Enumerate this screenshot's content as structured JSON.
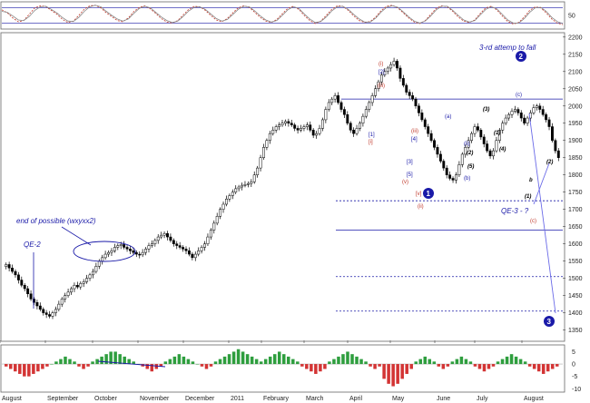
{
  "chart_data": [
    {
      "type": "line",
      "panel": "oscillator",
      "y_ticks": [
        "50"
      ],
      "ylim": [
        0,
        100
      ],
      "reference_levels": [
        20,
        80
      ],
      "series": [
        {
          "name": "",
          "color": "#c0392b",
          "style": "dashed",
          "values": [
            72,
            60,
            40,
            25,
            30,
            55,
            80,
            88,
            85,
            70,
            55,
            35,
            22,
            28,
            50,
            75,
            88,
            90,
            80,
            60,
            45,
            30,
            25,
            40,
            65,
            82,
            88,
            76,
            58,
            38,
            24,
            20,
            30,
            52,
            74,
            86,
            84,
            70,
            50,
            32,
            25,
            38,
            60,
            80,
            88,
            82,
            62,
            42,
            28,
            22,
            34,
            56,
            78,
            86,
            74,
            50,
            30,
            18,
            28,
            50,
            74,
            88,
            86,
            70,
            48,
            30,
            22,
            26,
            44,
            70,
            86,
            90,
            80,
            60,
            40,
            24,
            18,
            30,
            54,
            78,
            88,
            84,
            66,
            44,
            28,
            22,
            32,
            58,
            80,
            86,
            72,
            48,
            26,
            16,
            22,
            44,
            70,
            84,
            80,
            60,
            36,
            20,
            14
          ]
        },
        {
          "name": "",
          "color": "#888888",
          "style": "solid",
          "values": [
            66,
            62,
            48,
            32,
            30,
            46,
            70,
            84,
            86,
            74,
            60,
            42,
            28,
            26,
            42,
            66,
            84,
            90,
            84,
            66,
            50,
            36,
            28,
            36,
            58,
            78,
            86,
            80,
            62,
            44,
            30,
            22,
            28,
            46,
            68,
            82,
            84,
            74,
            56,
            38,
            28,
            34,
            54,
            74,
            86,
            84,
            68,
            48,
            32,
            24,
            30,
            50,
            72,
            84,
            78,
            56,
            36,
            22,
            26,
            44,
            68,
            84,
            86,
            74,
            54,
            36,
            24,
            24,
            40,
            64,
            82,
            88,
            82,
            64,
            44,
            28,
            20,
            28,
            48,
            72,
            86,
            86,
            70,
            50,
            32,
            24,
            30,
            52,
            74,
            84,
            76,
            54,
            32,
            20,
            20,
            38,
            62,
            80,
            82,
            66,
            42,
            26,
            18
          ]
        }
      ]
    },
    {
      "type": "candlestick",
      "panel": "price",
      "annotations": {
        "top_note": "3-rd attemp to fall",
        "left_note": "end of possible (wxyxx2)",
        "qe2": "QE-2",
        "qe3": "QE-3 - ?",
        "waves_circled": [
          "1",
          "2",
          "3"
        ],
        "waves_red": [
          "(i)",
          "(ii)",
          "(iii)",
          "(iv)",
          "(v)",
          "(iii)",
          "[ii]",
          "(c)",
          "(b)",
          "[1]",
          "[i]",
          "(ii)",
          "[v]"
        ],
        "waves_blue": [
          "(a)",
          "(b)",
          "(c)",
          "[1]",
          "[2]",
          "[3]",
          "[4]",
          "[5]",
          "(ii)",
          "(iv)",
          "(a)",
          "(b)",
          "(c)",
          "[1]",
          "[2]"
        ],
        "waves_black": [
          "(1)",
          "(2)",
          "(3)",
          "(4)",
          "(5)",
          "(3)",
          "(1)",
          "(2)",
          "b"
        ]
      },
      "y_ticks": [
        "2200",
        "2150",
        "2100",
        "2050",
        "2000",
        "1950",
        "1900",
        "1850",
        "1800",
        "1750",
        "1700",
        "1650",
        "1600",
        "1550",
        "1500",
        "1450",
        "1400",
        "1350"
      ],
      "ylim": [
        1320,
        2210
      ],
      "x_ticks": [
        "August",
        "September",
        "October",
        "November",
        "December",
        "2011",
        "February",
        "March",
        "April",
        "May",
        "June",
        "July",
        "August"
      ],
      "horizontal_levels": [
        2020,
        1725,
        1640,
        1505,
        1405
      ],
      "close": [
        1540,
        1530,
        1520,
        1510,
        1495,
        1480,
        1470,
        1455,
        1440,
        1430,
        1420,
        1410,
        1400,
        1395,
        1390,
        1400,
        1410,
        1425,
        1440,
        1450,
        1460,
        1470,
        1480,
        1475,
        1485,
        1490,
        1500,
        1510,
        1520,
        1535,
        1550,
        1560,
        1570,
        1575,
        1580,
        1590,
        1595,
        1598,
        1590,
        1585,
        1580,
        1575,
        1570,
        1568,
        1575,
        1585,
        1595,
        1600,
        1610,
        1620,
        1625,
        1630,
        1620,
        1610,
        1600,
        1595,
        1590,
        1585,
        1580,
        1570,
        1560,
        1570,
        1580,
        1590,
        1600,
        1620,
        1640,
        1660,
        1680,
        1700,
        1715,
        1730,
        1740,
        1750,
        1760,
        1765,
        1770,
        1772,
        1775,
        1780,
        1800,
        1820,
        1850,
        1880,
        1900,
        1920,
        1930,
        1940,
        1945,
        1950,
        1955,
        1950,
        1945,
        1935,
        1930,
        1935,
        1940,
        1945,
        1930,
        1915,
        1920,
        1935,
        1960,
        1990,
        2010,
        2020,
        2030,
        2010,
        1990,
        1975,
        1950,
        1930,
        1920,
        1935,
        1950,
        1970,
        1990,
        2010,
        2030,
        2050,
        2070,
        2090,
        2100,
        2110,
        2120,
        2130,
        2110,
        2080,
        2060,
        2040,
        2030,
        2020,
        2000,
        1980,
        1960,
        1940,
        1920,
        1900,
        1880,
        1860,
        1840,
        1820,
        1800,
        1790,
        1785,
        1800,
        1830,
        1860,
        1880,
        1900,
        1920,
        1940,
        1930,
        1910,
        1890,
        1870,
        1855,
        1870,
        1900,
        1930,
        1950,
        1965,
        1975,
        1985,
        1990,
        1980,
        1965,
        1950,
        1965,
        1980,
        1995,
        2000,
        1990,
        1975,
        1960,
        1940,
        1900,
        1870,
        1850
      ]
    },
    {
      "type": "bar",
      "panel": "histogram",
      "y_ticks": [
        "5",
        "0",
        "-5",
        "-10"
      ],
      "ylim": [
        -11,
        7
      ],
      "values": [
        -1,
        -2,
        -3,
        -4,
        -5,
        -5,
        -4,
        -3,
        -2,
        -1,
        0,
        1,
        2,
        3,
        2,
        1,
        -1,
        -2,
        -1,
        1,
        2,
        3,
        4,
        5,
        5,
        4,
        3,
        2,
        1,
        0,
        -1,
        -2,
        -3,
        -2,
        -1,
        1,
        2,
        3,
        4,
        3,
        2,
        1,
        0,
        -1,
        -2,
        -1,
        1,
        2,
        3,
        4,
        5,
        6,
        5,
        4,
        3,
        2,
        1,
        2,
        3,
        4,
        5,
        4,
        3,
        2,
        1,
        -1,
        -2,
        -3,
        -4,
        -3,
        -2,
        1,
        2,
        3,
        4,
        5,
        4,
        3,
        2,
        1,
        -1,
        -2,
        -1,
        -6,
        -8,
        -9,
        -8,
        -6,
        -4,
        -2,
        1,
        2,
        3,
        2,
        1,
        -1,
        -2,
        -1,
        1,
        2,
        3,
        2,
        1,
        -1,
        -2,
        -3,
        -2,
        -1,
        1,
        2,
        3,
        4,
        3,
        2,
        1,
        -1,
        -2,
        -3,
        -4,
        -3,
        -2,
        -1
      ],
      "divergence_line": true
    }
  ],
  "colors": {
    "up": "#2e9e3e",
    "down": "#d33434",
    "candle": "#000000",
    "level": "#1a1aa8",
    "grid": "#b9c6dc"
  }
}
